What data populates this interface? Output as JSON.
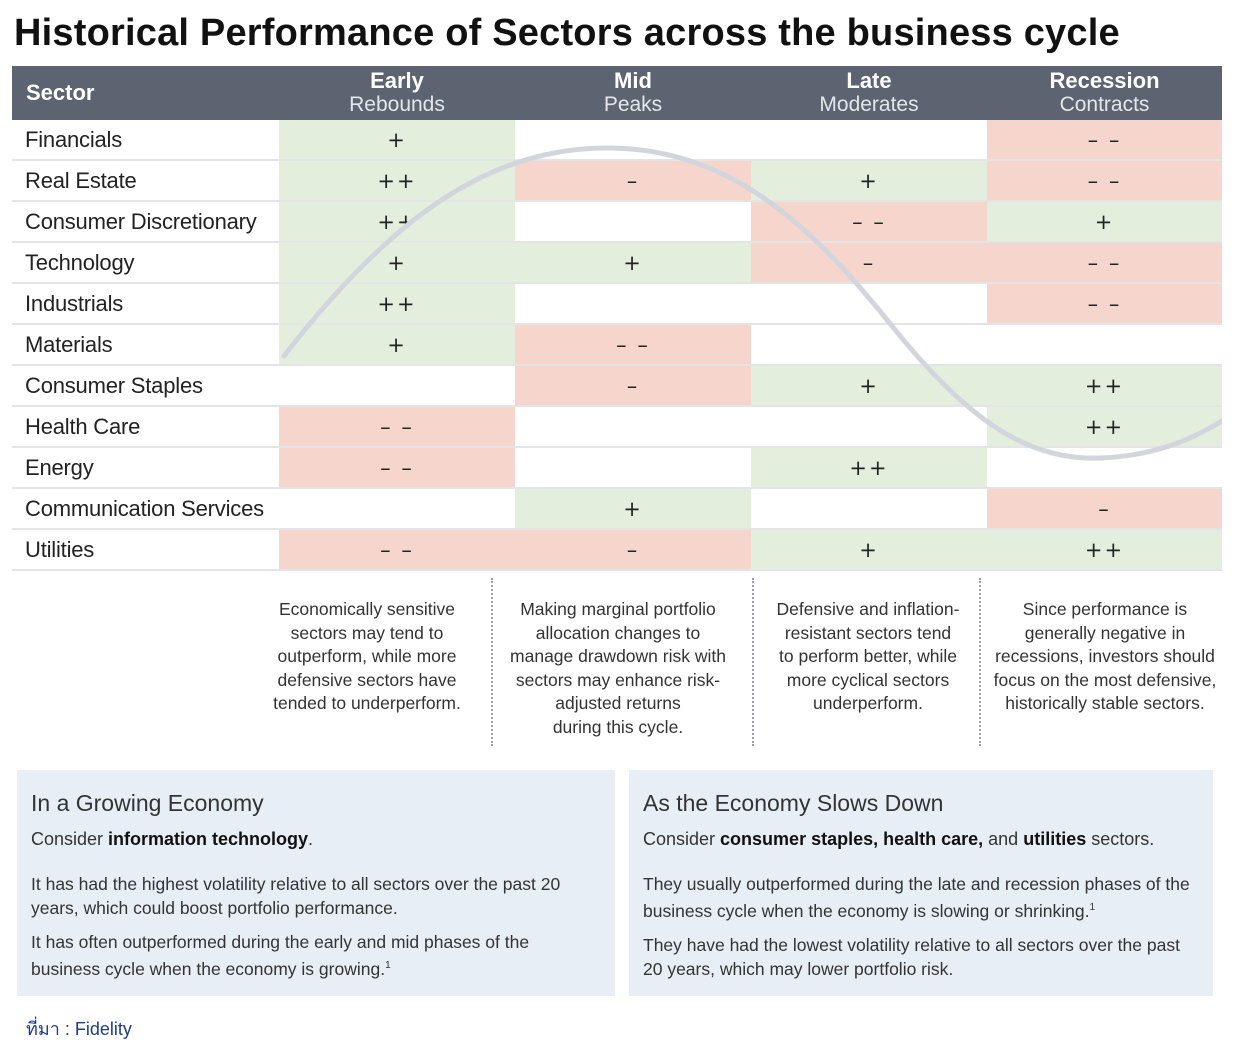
{
  "title": "Historical Performance of Sectors across the business cycle",
  "table": {
    "sector_header": "Sector",
    "phases": [
      {
        "name": "Early",
        "sub": "Rebounds"
      },
      {
        "name": "Mid",
        "sub": "Peaks"
      },
      {
        "name": "Late",
        "sub": "Moderates"
      },
      {
        "name": "Recession",
        "sub": "Contracts"
      }
    ],
    "rows": [
      {
        "sector": "Financials",
        "cells": [
          "+",
          "",
          "",
          "– –"
        ],
        "tone": [
          "pos",
          "neu",
          "neu",
          "neg"
        ]
      },
      {
        "sector": "Real Estate",
        "cells": [
          "++",
          "–",
          "+",
          "– –"
        ],
        "tone": [
          "pos",
          "neg",
          "pos",
          "neg"
        ]
      },
      {
        "sector": "Consumer Discretionary",
        "cells": [
          "++",
          "",
          "– –",
          "+"
        ],
        "tone": [
          "pos",
          "neu",
          "neg",
          "pos"
        ]
      },
      {
        "sector": "Technology",
        "cells": [
          "+",
          "+",
          "–",
          "– –"
        ],
        "tone": [
          "pos",
          "pos",
          "neg",
          "neg"
        ]
      },
      {
        "sector": "Industrials",
        "cells": [
          "++",
          "",
          "",
          "– –"
        ],
        "tone": [
          "pos",
          "neu",
          "neu",
          "neg"
        ]
      },
      {
        "sector": "Materials",
        "cells": [
          "+",
          "– –",
          "",
          ""
        ],
        "tone": [
          "pos",
          "neg",
          "neu",
          "neu"
        ]
      },
      {
        "sector": "Consumer Staples",
        "cells": [
          "",
          "–",
          "+",
          "++"
        ],
        "tone": [
          "neu",
          "neg",
          "pos",
          "pos"
        ]
      },
      {
        "sector": "Health Care",
        "cells": [
          "– –",
          "",
          "",
          "++"
        ],
        "tone": [
          "neg",
          "neu",
          "neu",
          "pos"
        ]
      },
      {
        "sector": "Energy",
        "cells": [
          "– –",
          "",
          "++",
          ""
        ],
        "tone": [
          "neg",
          "neu",
          "pos",
          "neu"
        ]
      },
      {
        "sector": "Communication Services",
        "cells": [
          "",
          "+",
          "",
          "–"
        ],
        "tone": [
          "neu",
          "pos",
          "neu",
          "neg"
        ]
      },
      {
        "sector": "Utilities",
        "cells": [
          "– –",
          "–",
          "+",
          "++"
        ],
        "tone": [
          "neg",
          "neg",
          "pos",
          "pos"
        ]
      }
    ]
  },
  "notes": [
    {
      "line1": "Economically sensitive",
      "line2": "sectors may tend to",
      "line3": "outperform, while more",
      "line4": "defensive sectors have",
      "line5": "tended to underperform.",
      "line6": ""
    },
    {
      "line1": "Making marginal portfolio",
      "line2": "allocation changes to",
      "line3": "manage drawdown risk with",
      "line4": "sectors may enhance risk-",
      "line5": "adjusted returns",
      "line6": "during this cycle."
    },
    {
      "line1": "Defensive and inflation-",
      "line2": "resistant sectors tend",
      "line3": "to perform better, while",
      "line4": "more cyclical sectors",
      "line5": "underperform.",
      "line6": ""
    },
    {
      "line1": "Since performance is",
      "line2": "generally negative in",
      "line3": "recessions, investors should",
      "line4": "focus on the most defensive,",
      "line5": "historically stable sectors.",
      "line6": ""
    }
  ],
  "panels": {
    "growing": {
      "heading": "In a Growing Economy",
      "consider_prefix": "Consider ",
      "consider_bold": "information technology",
      "consider_suffix": ".",
      "p1": "It has had the highest volatility relative to all sectors over the past 20 years, which could boost portfolio performance.",
      "p2": "It has often outperformed during the early and mid phases of the business cycle when the economy is growing.",
      "footnote": "1"
    },
    "slowing": {
      "heading": "As the Economy Slows Down",
      "consider_prefix": "Consider ",
      "consider_bold": "consumer staples, health care,",
      "consider_mid": " and ",
      "consider_bold2": "utilities",
      "consider_suffix": " sectors.",
      "p1": "They usually outperformed during the late and recession phases of the business cycle when the economy is slowing or shrinking.",
      "p2": "They have had the lowest volatility relative to all sectors over the past 20 years, which may lower portfolio risk.",
      "footnote": "1"
    }
  },
  "source": "ที่มา : Fidelity",
  "colors": {
    "header_bg": "#5b6470",
    "positive": "#dae8cf",
    "negative": "#f2c6b8",
    "panel_bg": "#e8eef5",
    "wave": "#d2d6dc"
  }
}
